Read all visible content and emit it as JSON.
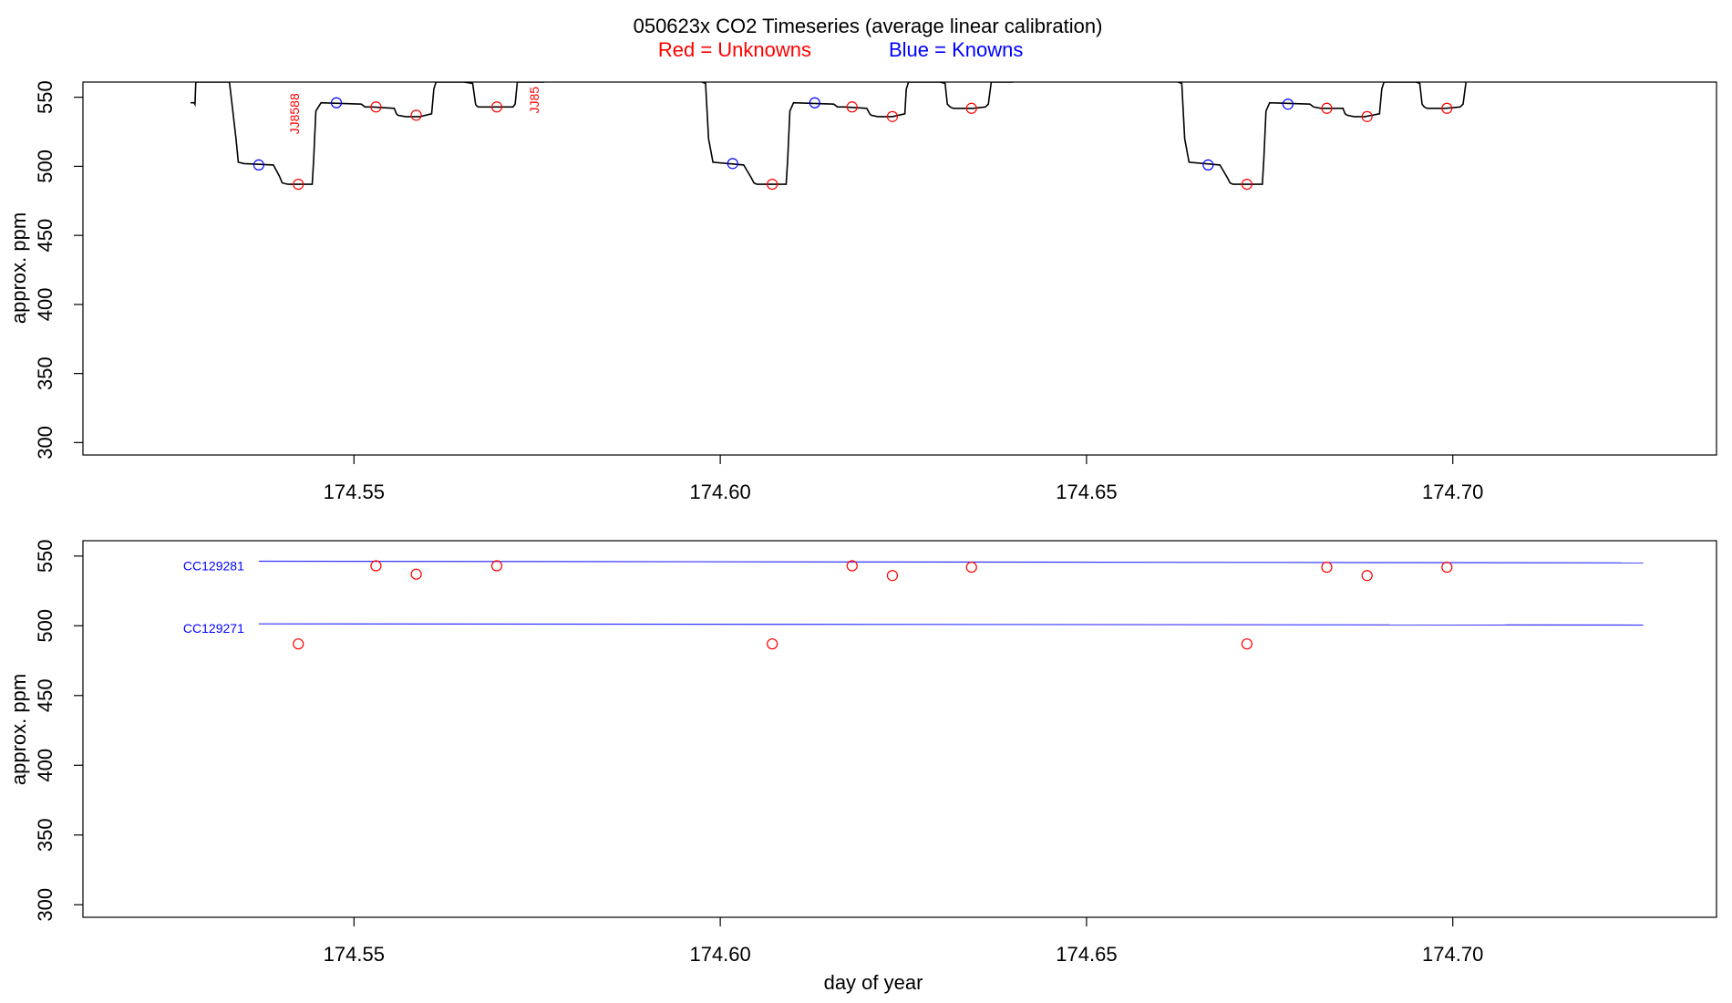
{
  "title": {
    "main": "050623x   CO2 Timeseries (average linear calibration)",
    "legend_red": "Red = Unknowns",
    "legend_blue": "Blue = Knowns"
  },
  "colors": {
    "unknown": "#ff0000",
    "known": "#0000ff",
    "trace": "#000000",
    "standard_line": "#3333ff"
  },
  "chart_data": [
    {
      "type": "line",
      "panel": "top",
      "title": "050623x   CO2 Timeseries (average linear calibration)",
      "xlabel": "",
      "ylabel": "approx. ppm",
      "xlim": [
        174.513,
        174.736
      ],
      "ylim": [
        291,
        561
      ],
      "xticks": [
        174.55,
        174.6,
        174.65,
        174.7
      ],
      "xtick_labels": [
        "174.55",
        "174.60",
        "174.65",
        "174.70"
      ],
      "yticks": [
        300,
        350,
        400,
        450,
        500,
        550
      ],
      "ytick_labels": [
        "300",
        "350",
        "400",
        "450",
        "500",
        "550"
      ],
      "grid": false,
      "trace": {
        "name": "",
        "x": [
          174.5277,
          174.5282,
          174.5283,
          174.5284,
          174.529,
          174.533,
          174.5339,
          174.5342,
          174.535,
          174.539,
          174.5398,
          174.5402,
          174.541,
          174.5443,
          174.5445,
          174.5448,
          174.5455,
          174.551,
          174.5515,
          174.5525,
          174.5555,
          174.5558,
          174.556,
          174.557,
          174.559,
          174.5606,
          174.5609,
          174.5612,
          174.5615,
          174.565,
          174.5662,
          174.5666,
          174.5667,
          174.567,
          174.568,
          174.571,
          174.5717,
          174.572,
          174.5723,
          174.5726,
          174.576,
          174.5975,
          174.598,
          174.5984,
          174.599,
          174.6032,
          174.6042,
          174.6046,
          174.605,
          174.609,
          174.6092,
          174.6095,
          174.61,
          174.6155,
          174.616,
          174.617,
          174.62,
          174.6204,
          174.6206,
          174.6215,
          174.6235,
          174.6252,
          174.6254,
          174.6257,
          174.626,
          174.63,
          174.6307,
          174.631,
          174.6314,
          174.6318,
          174.6345,
          174.6362,
          174.6366,
          174.637,
          174.6373,
          174.64,
          174.6625,
          174.663,
          174.6634,
          174.664,
          174.6682,
          174.6692,
          174.6696,
          174.67,
          174.674,
          174.6742,
          174.6745,
          174.675,
          174.6805,
          174.681,
          174.682,
          174.685,
          174.6853,
          174.6856,
          174.6865,
          174.688,
          174.69,
          174.6903,
          174.6906,
          174.691,
          174.695,
          174.6955,
          174.6958,
          174.6961,
          174.6965,
          174.699,
          174.701,
          174.7014,
          174.7018
        ],
        "y": [
          546,
          546,
          545,
          561,
          561,
          561,
          520,
          503,
          502,
          501,
          493,
          488,
          487,
          487,
          505,
          540,
          546,
          545,
          543,
          543,
          542,
          538,
          537,
          536,
          536,
          538,
          556,
          561,
          561,
          561,
          560,
          545,
          544,
          543,
          543,
          543,
          543,
          545,
          561,
          561,
          561,
          561,
          560,
          520,
          503,
          501,
          492,
          488,
          487,
          487,
          505,
          540,
          546,
          545,
          543,
          543,
          542,
          538,
          537,
          536,
          536,
          538,
          556,
          561,
          561,
          561,
          560,
          545,
          543,
          542,
          542,
          543,
          545,
          561,
          561,
          561,
          561,
          560,
          520,
          503,
          501,
          492,
          488,
          487,
          487,
          505,
          540,
          546,
          545,
          543,
          542,
          542,
          538,
          537,
          536,
          536,
          538,
          556,
          561,
          561,
          561,
          560,
          545,
          543,
          542,
          542,
          543,
          545,
          561
        ]
      },
      "unknowns": {
        "x": [
          174.5424,
          174.553,
          174.5585,
          174.5695,
          174.6071,
          174.618,
          174.6235,
          174.6343,
          174.6719,
          174.6828,
          174.6883,
          174.6992
        ],
        "y": [
          487,
          543,
          537,
          543,
          487,
          543,
          536,
          542,
          487,
          542,
          536,
          542
        ]
      },
      "knowns": {
        "x": [
          174.537,
          174.5476,
          174.6017,
          174.6129,
          174.6666,
          174.6775
        ],
        "y": [
          501,
          546,
          502,
          546,
          501,
          545
        ]
      },
      "annotations": [
        {
          "text": "JJ8588",
          "x": 174.5425,
          "y": 538
        },
        {
          "text": "JJ85",
          "x": 174.5752,
          "y": 548
        }
      ]
    },
    {
      "type": "scatter",
      "panel": "bottom",
      "xlabel": "day of year",
      "ylabel": "approx. ppm",
      "xlim": [
        174.513,
        174.736
      ],
      "ylim": [
        291,
        561
      ],
      "xticks": [
        174.55,
        174.6,
        174.65,
        174.7
      ],
      "xtick_labels": [
        "174.55",
        "174.60",
        "174.65",
        "174.70"
      ],
      "yticks": [
        300,
        350,
        400,
        450,
        500,
        550
      ],
      "ytick_labels": [
        "300",
        "350",
        "400",
        "450",
        "500",
        "550"
      ],
      "grid": false,
      "standards": [
        {
          "name": "CC129281",
          "x": [
            174.537,
            174.726
          ],
          "y": [
            546.3,
            545.1
          ]
        },
        {
          "name": "CC129271",
          "x": [
            174.537,
            174.726
          ],
          "y": [
            501.4,
            500.5
          ]
        }
      ],
      "unknowns": {
        "x": [
          174.5424,
          174.553,
          174.5585,
          174.5695,
          174.6071,
          174.618,
          174.6235,
          174.6343,
          174.6719,
          174.6828,
          174.6883,
          174.6992
        ],
        "y": [
          487,
          543,
          537,
          543,
          487,
          543,
          536,
          542,
          487,
          542,
          536,
          542
        ]
      }
    }
  ]
}
